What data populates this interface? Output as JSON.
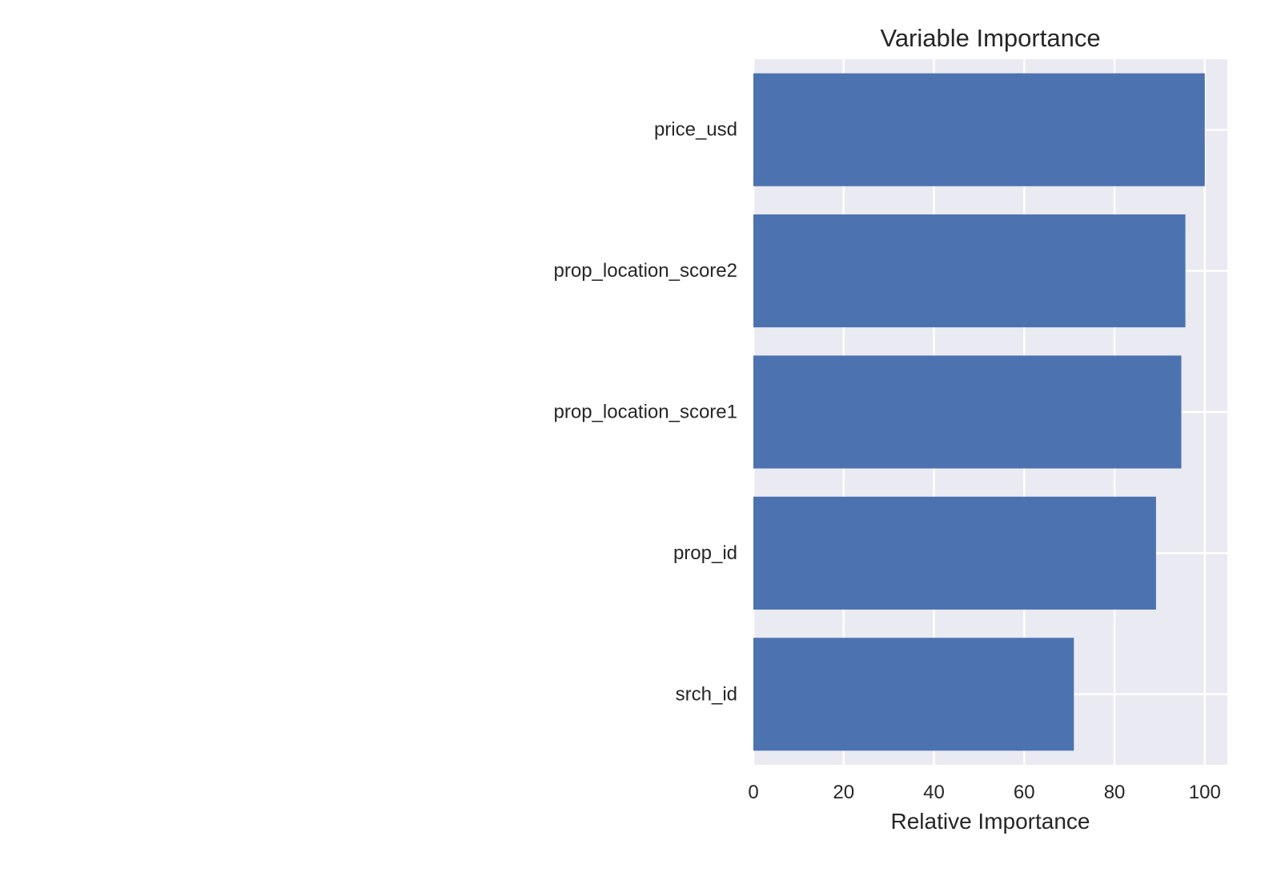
{
  "chart_data": {
    "type": "bar",
    "orientation": "horizontal",
    "title": "Variable Importance",
    "xlabel": "Relative Importance",
    "ylabel": "",
    "categories": [
      "price_usd",
      "prop_location_score2",
      "prop_location_score1",
      "prop_id",
      "srch_id"
    ],
    "values": [
      100,
      95.7,
      94.8,
      89.2,
      71.0
    ],
    "xlim": [
      0,
      105
    ],
    "xticks": [
      0,
      20,
      40,
      60,
      80,
      100
    ],
    "grid": true,
    "bar_color": "#4c72b0",
    "background_color": "#eaeaf2",
    "grid_color": "#ffffff"
  }
}
